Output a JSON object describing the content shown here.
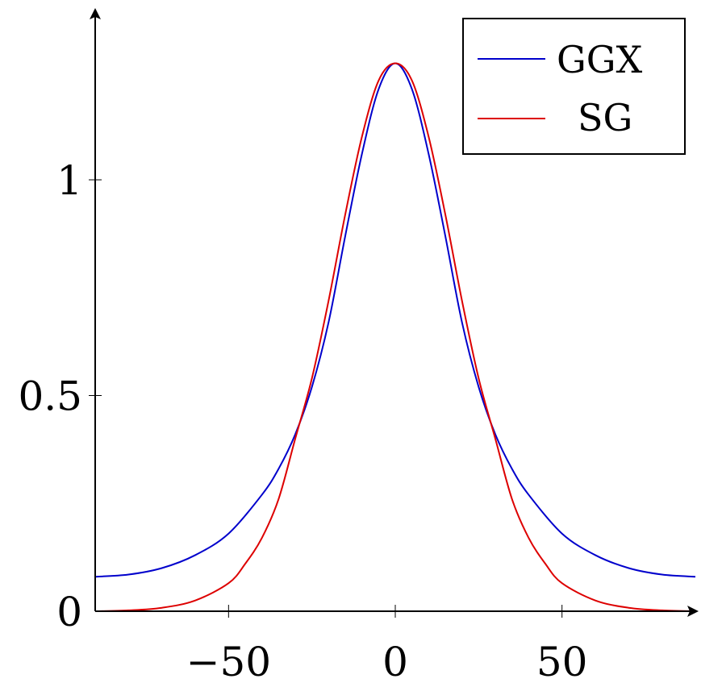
{
  "chart_data": {
    "type": "line",
    "title": "",
    "xlabel": "",
    "ylabel": "",
    "xlim": [
      -90,
      90
    ],
    "ylim": [
      0,
      1.3
    ],
    "x_ticks": [
      {
        "value": -50,
        "label": "−50"
      },
      {
        "value": 0,
        "label": "0"
      },
      {
        "value": 50,
        "label": "50"
      }
    ],
    "y_ticks": [
      {
        "value": 0,
        "label": "0"
      },
      {
        "value": 0.5,
        "label": "0.5"
      },
      {
        "value": 1,
        "label": "1"
      }
    ],
    "grid": false,
    "legend_position": "top-right",
    "series": [
      {
        "name": "GGX",
        "color": "#0000cc",
        "x": [
          -90,
          -80,
          -70,
          -60,
          -50,
          -40,
          -35,
          -30,
          -25,
          -20,
          -15,
          -10,
          -5,
          0,
          5,
          10,
          15,
          20,
          25,
          30,
          35,
          40,
          50,
          60,
          70,
          80,
          90
        ],
        "y": [
          0.08,
          0.085,
          0.1,
          0.13,
          0.18,
          0.27,
          0.33,
          0.41,
          0.52,
          0.67,
          0.87,
          1.06,
          1.21,
          1.27,
          1.21,
          1.06,
          0.87,
          0.67,
          0.52,
          0.41,
          0.33,
          0.27,
          0.18,
          0.13,
          0.1,
          0.085,
          0.08
        ]
      },
      {
        "name": "SG",
        "color": "#dd0000",
        "x": [
          -90,
          -80,
          -70,
          -60,
          -50,
          -45,
          -40,
          -35,
          -30,
          -25,
          -20,
          -15,
          -10,
          -5,
          0,
          5,
          10,
          15,
          20,
          25,
          30,
          35,
          40,
          45,
          50,
          60,
          70,
          80,
          90
        ],
        "y": [
          0.0,
          0.002,
          0.008,
          0.025,
          0.065,
          0.11,
          0.17,
          0.26,
          0.4,
          0.54,
          0.72,
          0.92,
          1.1,
          1.23,
          1.27,
          1.23,
          1.1,
          0.92,
          0.72,
          0.54,
          0.4,
          0.26,
          0.17,
          0.11,
          0.065,
          0.025,
          0.008,
          0.002,
          0.0
        ]
      }
    ]
  }
}
